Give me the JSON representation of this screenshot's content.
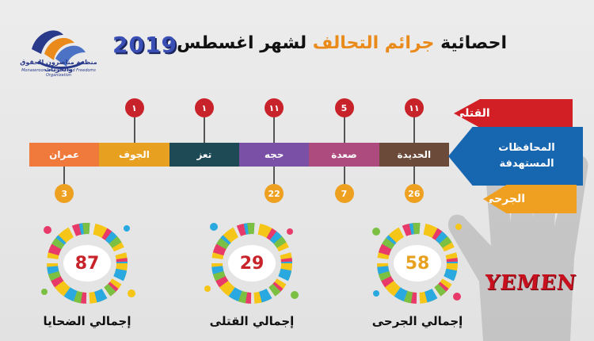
{
  "logo": {
    "name_ar": "منظمة مناصرون للحقوق والحريات",
    "name_en": "Monaseroon for Rights and Freedoms Organization",
    "colors": [
      "#2a3a8a",
      "#e98a1a",
      "#4b72c4"
    ]
  },
  "title": {
    "part1": "احصائية",
    "part2": "جرائم التحالف",
    "part3": "لشهر اغسطس",
    "year": "2019"
  },
  "legend": {
    "killed": "القتلى",
    "governorates": "المحافظات المستهدفة",
    "wounded": "الجرحى"
  },
  "governorates": [
    {
      "name": "عمران",
      "color": "#f07a3c",
      "killed": "",
      "wounded": "3"
    },
    {
      "name": "الجوف",
      "color": "#e8a020",
      "killed": "١",
      "wounded": ""
    },
    {
      "name": "تعز",
      "color": "#1e4a55",
      "killed": "١",
      "wounded": ""
    },
    {
      "name": "حجه",
      "color": "#7a4fa6",
      "killed": "١١",
      "wounded": "22"
    },
    {
      "name": "صعدة",
      "color": "#ad4b7e",
      "killed": "5",
      "wounded": "7"
    },
    {
      "name": "الحديدة",
      "color": "#6b4a3a",
      "killed": "١١",
      "wounded": "26"
    }
  ],
  "totals": {
    "victims": {
      "value": "87",
      "label": "إجمالي الضحايا",
      "color": "#c8232a"
    },
    "killed": {
      "value": "29",
      "label": "إجمالي القتلى",
      "color": "#c8232a"
    },
    "wounded": {
      "value": "58",
      "label": "إجمالي الجرحى",
      "color": "#e8a020"
    }
  },
  "country": "YEMEN"
}
